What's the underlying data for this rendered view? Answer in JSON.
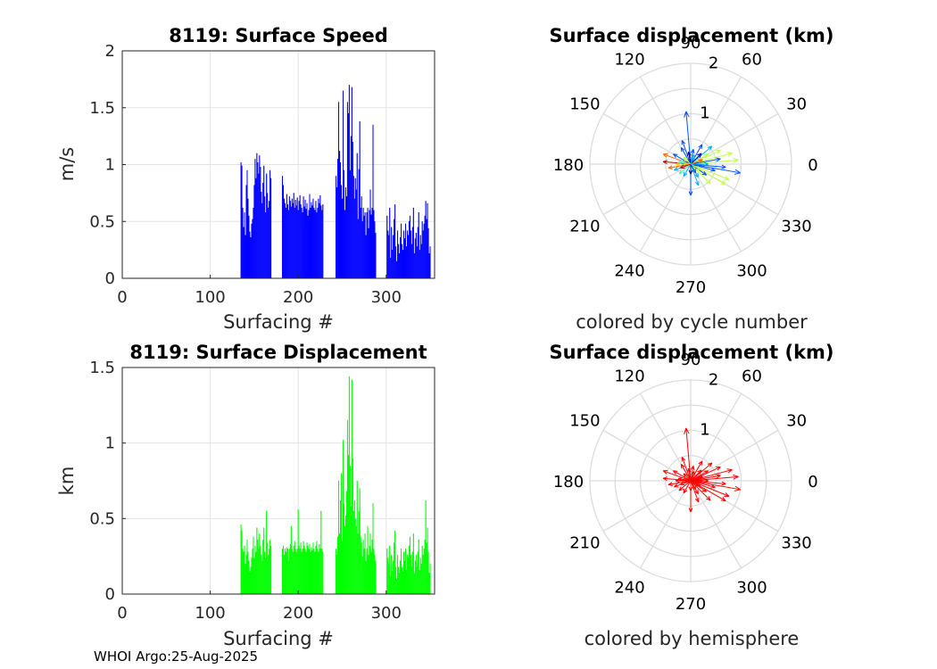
{
  "chart_data": [
    {
      "type": "bar",
      "title": "8119: Surface Speed",
      "xlabel": "Surfacing #",
      "ylabel": "m/s",
      "xlim": [
        0,
        355
      ],
      "ylim": [
        0,
        2
      ],
      "xticks": [
        "0",
        "100",
        "200",
        "300"
      ],
      "yticks": [
        "0",
        "0.5",
        "1",
        "1.5",
        "2"
      ],
      "color": "#0000ff",
      "segments": [
        {
          "x_start": 135,
          "values": [
            1.02,
            0.99,
            0.62,
            0.45,
            0.58,
            0.38,
            0.82,
            0.95,
            0.7,
            0.55,
            0.41,
            0.36,
            0.48,
            0.52,
            0.62,
            0.82,
            1.05,
            0.88,
            1.1,
            1.02,
            0.92,
            1.08,
            0.98,
            0.76,
            0.66,
            0.84,
            0.99,
            0.72,
            0.58,
            0.92,
            0.75,
            0.62,
            0.68,
            0.95,
            0.88
          ]
        },
        {
          "x_start": 182,
          "values": [
            0.9,
            0.82,
            0.7,
            0.66,
            0.62,
            0.74,
            0.65,
            0.6,
            0.72,
            0.68,
            0.63,
            0.7,
            0.66,
            0.75,
            0.62,
            0.69,
            0.64,
            0.71,
            0.6,
            0.68,
            0.73,
            0.65,
            0.62,
            0.58,
            0.72,
            0.63,
            0.69,
            0.61,
            0.66,
            0.55,
            0.6,
            0.74,
            0.62,
            0.67,
            0.64,
            0.7,
            0.62,
            0.6,
            0.68,
            0.58,
            0.62,
            0.7,
            0.66,
            0.73,
            0.64,
            0.6,
            0.65
          ]
        },
        {
          "x_start": 243,
          "values": [
            0.9,
            0.8,
            1.05,
            1.55,
            1.12,
            1.02,
            0.82,
            0.7,
            1.65,
            0.95,
            0.6,
            0.8,
            0.72,
            1.55,
            1.45,
            1.7,
            0.95,
            1.25,
            1.68,
            1.2,
            0.9,
            0.7,
            0.88,
            0.78,
            1.1,
            0.52,
            0.96,
            1.38,
            0.62,
            0.72,
            0.5,
            0.62,
            0.55,
            0.58,
            0.38,
            0.58,
            0.62,
            0.44,
            0.6,
            0.78,
            0.56,
            0.62,
            1.35,
            0.6,
            0.5,
            0.4
          ]
        },
        {
          "x_start": 301,
          "values": [
            0.55,
            0.42,
            0.38,
            0.62,
            0.18,
            0.45,
            0.25,
            0.38,
            0.52,
            0.65,
            0.28,
            0.15,
            0.42,
            0.3,
            0.22,
            0.36,
            0.48,
            0.3,
            0.25,
            0.42,
            0.35,
            0.48,
            0.28,
            0.42,
            0.38,
            0.5,
            0.55,
            0.42,
            0.3,
            0.45,
            0.62,
            0.22,
            0.35,
            0.4,
            0.28,
            0.45,
            0.58,
            0.25,
            0.38,
            0.3,
            0.5,
            0.42,
            0.48,
            0.55,
            0.68,
            0.52,
            0.66,
            0.44,
            0.22,
            0.28
          ]
        }
      ]
    },
    {
      "type": "bar",
      "title": "8119: Surface Displacement",
      "xlabel": "Surfacing #",
      "ylabel": "km",
      "xlim": [
        0,
        355
      ],
      "ylim": [
        0,
        1.5
      ],
      "xticks": [
        "0",
        "100",
        "200",
        "300"
      ],
      "yticks": [
        "0",
        "0.5",
        "1",
        "1.5"
      ],
      "color": "#00ff00",
      "segments": [
        {
          "x_start": 135,
          "values": [
            0.46,
            0.42,
            0.3,
            0.28,
            0.32,
            0.2,
            0.26,
            0.36,
            0.28,
            0.22,
            0.15,
            0.18,
            0.24,
            0.3,
            0.38,
            0.24,
            0.32,
            0.28,
            0.44,
            0.36,
            0.3,
            0.4,
            0.32,
            0.26,
            0.22,
            0.36,
            0.44,
            0.28,
            0.24,
            0.55,
            0.34,
            0.26,
            0.3,
            0.36,
            0.32
          ]
        },
        {
          "x_start": 182,
          "values": [
            0.3,
            0.32,
            0.26,
            0.3,
            0.28,
            0.31,
            0.3,
            0.22,
            0.3,
            0.33,
            0.45,
            0.3,
            0.28,
            0.32,
            0.35,
            0.3,
            0.28,
            0.3,
            0.56,
            0.32,
            0.3,
            0.34,
            0.28,
            0.3,
            0.35,
            0.32,
            0.3,
            0.28,
            0.34,
            0.32,
            0.3,
            0.33,
            0.28,
            0.31,
            0.29,
            0.34,
            0.3,
            0.28,
            0.32,
            0.35,
            0.3,
            0.28,
            0.33,
            0.3,
            0.55,
            0.3,
            0.28
          ]
        },
        {
          "x_start": 243,
          "values": [
            0.3,
            0.26,
            0.38,
            0.75,
            0.4,
            0.62,
            0.8,
            0.35,
            1.02,
            0.6,
            0.45,
            0.52,
            0.68,
            1.15,
            0.92,
            1.44,
            0.85,
            0.58,
            1.42,
            0.9,
            0.55,
            0.62,
            0.5,
            0.45,
            0.75,
            0.4,
            0.55,
            0.7,
            0.38,
            0.34,
            0.25,
            0.36,
            0.3,
            0.4,
            0.22,
            0.3,
            0.45,
            0.26,
            0.32,
            0.4,
            0.28,
            0.36,
            0.6,
            0.3,
            0.26,
            0.22
          ]
        },
        {
          "x_start": 301,
          "values": [
            0.3,
            0.24,
            0.2,
            0.32,
            0.12,
            0.26,
            0.15,
            0.22,
            0.34,
            0.42,
            0.18,
            0.1,
            0.26,
            0.18,
            0.14,
            0.22,
            0.3,
            0.18,
            0.15,
            0.28,
            0.22,
            0.3,
            0.16,
            0.26,
            0.24,
            0.32,
            0.38,
            0.26,
            0.18,
            0.28,
            0.4,
            0.14,
            0.22,
            0.26,
            0.18,
            0.28,
            0.36,
            0.16,
            0.24,
            0.2,
            0.32,
            0.26,
            0.3,
            0.36,
            0.62,
            0.34,
            0.44,
            0.28,
            0.14,
            0.2
          ]
        }
      ]
    },
    {
      "type": "polar-compass",
      "title": "Surface displacement (km)",
      "caption": "colored by cycle number",
      "rmax": 2,
      "radial_ticks": [
        "1",
        "2"
      ],
      "angle_ticks": [
        "0",
        "30",
        "60",
        "90",
        "120",
        "150",
        "180",
        "210",
        "240",
        "270",
        "300",
        "330"
      ],
      "color_scale": [
        "#00008f",
        "#0050ff",
        "#00b0ff",
        "#40ffbf",
        "#bfff40",
        "#ffd000",
        "#ff6000",
        "#c00000"
      ],
      "arrows": [
        {
          "angle_deg": 95,
          "r": 1.05,
          "cycle": 0.2
        },
        {
          "angle_deg": 5,
          "r": 0.95,
          "cycle": 0.55
        },
        {
          "angle_deg": -10,
          "r": 1.0,
          "cycle": 0.2
        },
        {
          "angle_deg": 15,
          "r": 0.85,
          "cycle": 0.55
        },
        {
          "angle_deg": -22,
          "r": 0.82,
          "cycle": 0.62
        },
        {
          "angle_deg": -30,
          "r": 0.8,
          "cycle": 0.6
        },
        {
          "angle_deg": 25,
          "r": 0.65,
          "cycle": 0.58
        },
        {
          "angle_deg": -45,
          "r": 0.55,
          "cycle": 0.58
        },
        {
          "angle_deg": 40,
          "r": 0.55,
          "cycle": 0.25
        },
        {
          "angle_deg": 60,
          "r": 0.45,
          "cycle": 0.2
        },
        {
          "angle_deg": -90,
          "r": 0.62,
          "cycle": 0.1
        },
        {
          "angle_deg": -70,
          "r": 0.45,
          "cycle": 0.3
        },
        {
          "angle_deg": 160,
          "r": 0.58,
          "cycle": 0.9
        },
        {
          "angle_deg": 175,
          "r": 0.55,
          "cycle": 0.95
        },
        {
          "angle_deg": 190,
          "r": 0.45,
          "cycle": 0.85
        },
        {
          "angle_deg": 150,
          "r": 0.4,
          "cycle": 0.08
        },
        {
          "angle_deg": 200,
          "r": 0.35,
          "cycle": 0.3
        },
        {
          "angle_deg": 120,
          "r": 0.38,
          "cycle": 0.15
        },
        {
          "angle_deg": 110,
          "r": 0.5,
          "cycle": 0.1
        },
        {
          "angle_deg": -5,
          "r": 0.7,
          "cycle": 0.1
        },
        {
          "angle_deg": 10,
          "r": 0.6,
          "cycle": 0.12
        },
        {
          "angle_deg": -15,
          "r": 0.5,
          "cycle": 0.2
        },
        {
          "angle_deg": 30,
          "r": 0.4,
          "cycle": 0.55
        },
        {
          "angle_deg": -60,
          "r": 0.3,
          "cycle": 0.35
        },
        {
          "angle_deg": 80,
          "r": 0.3,
          "cycle": 0.12
        },
        {
          "angle_deg": 100,
          "r": 0.25,
          "cycle": 0.05
        },
        {
          "angle_deg": 240,
          "r": 0.28,
          "cycle": 0.25
        },
        {
          "angle_deg": 220,
          "r": 0.3,
          "cycle": 0.45
        },
        {
          "angle_deg": 180,
          "r": 0.3,
          "cycle": 0.7
        },
        {
          "angle_deg": 170,
          "r": 0.25,
          "cycle": 0.4
        },
        {
          "angle_deg": 0,
          "r": 0.35,
          "cycle": 0.3
        },
        {
          "angle_deg": 45,
          "r": 0.3,
          "cycle": 0.05
        },
        {
          "angle_deg": -35,
          "r": 0.38,
          "cycle": 0.1
        },
        {
          "angle_deg": 135,
          "r": 0.2,
          "cycle": 0.5
        },
        {
          "angle_deg": 270,
          "r": 0.2,
          "cycle": 0.02
        },
        {
          "angle_deg": 20,
          "r": 0.25,
          "cycle": 0.9
        },
        {
          "angle_deg": 200,
          "r": 0.22,
          "cycle": 0.95
        },
        {
          "angle_deg": 330,
          "r": 0.22,
          "cycle": 0.6
        },
        {
          "angle_deg": 300,
          "r": 0.2,
          "cycle": 0.15
        },
        {
          "angle_deg": 70,
          "r": 0.2,
          "cycle": 0.3
        }
      ]
    },
    {
      "type": "polar-compass",
      "title": "Surface displacement (km)",
      "caption": "colored by hemisphere",
      "rmax": 2,
      "radial_ticks": [
        "1",
        "2"
      ],
      "angle_ticks": [
        "0",
        "30",
        "60",
        "90",
        "120",
        "150",
        "180",
        "210",
        "240",
        "270",
        "300",
        "330"
      ],
      "color": "#ff0000",
      "arrows": [
        {
          "angle_deg": 95,
          "r": 1.05
        },
        {
          "angle_deg": 5,
          "r": 0.95
        },
        {
          "angle_deg": -10,
          "r": 1.0
        },
        {
          "angle_deg": 15,
          "r": 0.85
        },
        {
          "angle_deg": -22,
          "r": 0.82
        },
        {
          "angle_deg": -30,
          "r": 0.8
        },
        {
          "angle_deg": 25,
          "r": 0.65
        },
        {
          "angle_deg": -45,
          "r": 0.55
        },
        {
          "angle_deg": 40,
          "r": 0.55
        },
        {
          "angle_deg": 60,
          "r": 0.45
        },
        {
          "angle_deg": -90,
          "r": 0.62
        },
        {
          "angle_deg": -70,
          "r": 0.45
        },
        {
          "angle_deg": 160,
          "r": 0.58
        },
        {
          "angle_deg": 175,
          "r": 0.55
        },
        {
          "angle_deg": 190,
          "r": 0.45
        },
        {
          "angle_deg": 150,
          "r": 0.4
        },
        {
          "angle_deg": 200,
          "r": 0.35
        },
        {
          "angle_deg": 120,
          "r": 0.38
        },
        {
          "angle_deg": 110,
          "r": 0.5
        },
        {
          "angle_deg": -5,
          "r": 0.7
        },
        {
          "angle_deg": 10,
          "r": 0.6
        },
        {
          "angle_deg": -15,
          "r": 0.5
        },
        {
          "angle_deg": 30,
          "r": 0.4
        },
        {
          "angle_deg": -60,
          "r": 0.3
        },
        {
          "angle_deg": 80,
          "r": 0.3
        },
        {
          "angle_deg": 100,
          "r": 0.25
        },
        {
          "angle_deg": 240,
          "r": 0.28
        },
        {
          "angle_deg": 220,
          "r": 0.3
        },
        {
          "angle_deg": 180,
          "r": 0.3
        },
        {
          "angle_deg": 170,
          "r": 0.25
        },
        {
          "angle_deg": 0,
          "r": 0.35
        },
        {
          "angle_deg": 45,
          "r": 0.3
        },
        {
          "angle_deg": -35,
          "r": 0.38
        },
        {
          "angle_deg": 135,
          "r": 0.2
        },
        {
          "angle_deg": 270,
          "r": 0.2
        },
        {
          "angle_deg": 20,
          "r": 0.25
        },
        {
          "angle_deg": 200,
          "r": 0.22
        },
        {
          "angle_deg": 330,
          "r": 0.22
        },
        {
          "angle_deg": 300,
          "r": 0.2
        },
        {
          "angle_deg": 70,
          "r": 0.2
        }
      ]
    }
  ],
  "footer": "WHOI Argo:25-Aug-2025"
}
